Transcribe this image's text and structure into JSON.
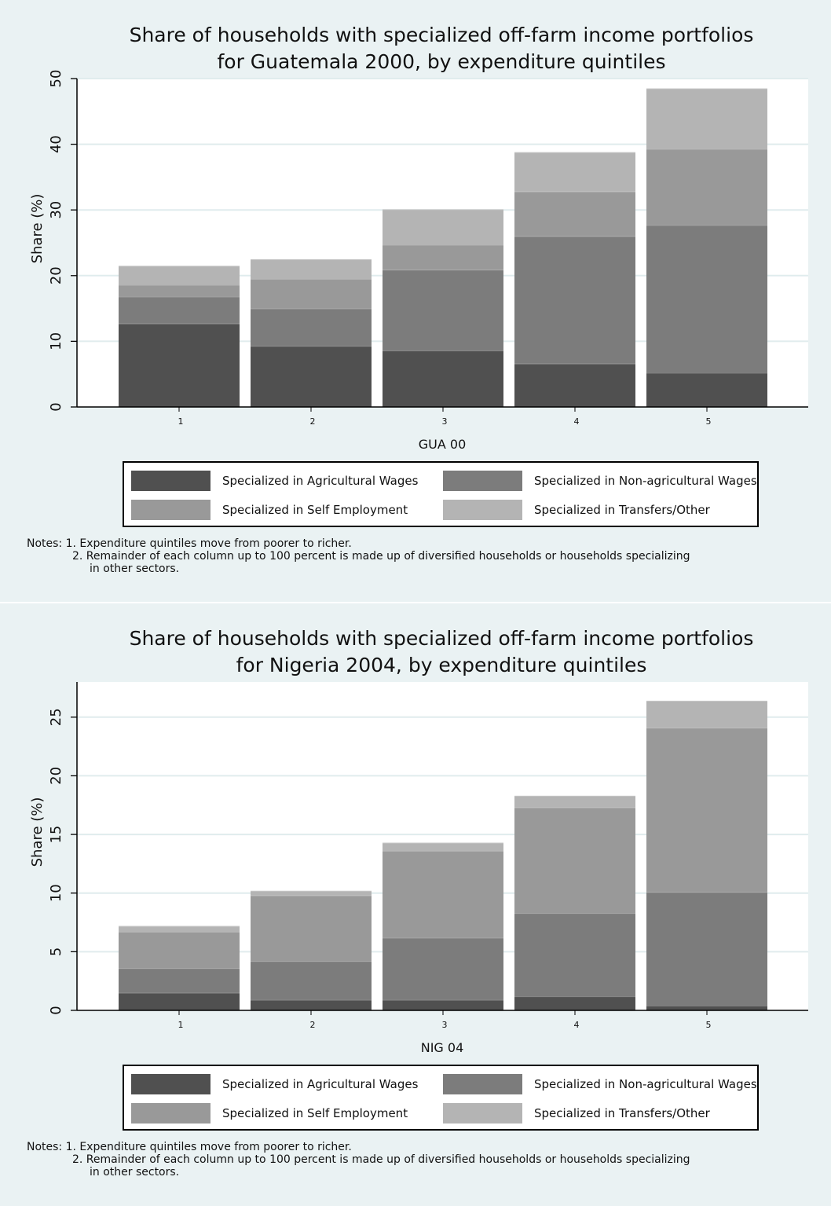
{
  "colors": {
    "agri_wages": "#505050",
    "nonagri_wages": "#7c7c7c",
    "self_employment": "#999999",
    "transfers_other": "#b4b4b4",
    "panel_bg": "#eaf2f3",
    "grid": "#e0eced"
  },
  "charts": [
    {
      "title_line1": "Share of households with specialized off-farm income portfolios",
      "title_line2": "for Guatemala 2000, by expenditure quintiles",
      "xname": "GUA 00",
      "notes": {
        "line1": "Notes: 1. Expenditure quintiles move from poorer to richer.",
        "line2": "2. Remainder of each column up to 100 percent is made up of diversified households or households specializing",
        "line3": "in other sectors."
      }
    },
    {
      "title_line1": "Share of households with specialized off-farm income portfolios",
      "title_line2": "for Nigeria 2004, by expenditure quintiles",
      "xname": "NIG 04",
      "notes": {
        "line1": "Notes: 1. Expenditure quintiles move from poorer to richer.",
        "line2": "2. Remainder of each column up to 100 percent is made up of diversified households or households specializing",
        "line3": "in other sectors."
      }
    }
  ],
  "legend": {
    "agri_wages": "Specialized in Agricultural Wages",
    "nonagri_wages": "Specialized in Non-agricultural Wages",
    "self_employment": "Specialized in Self Employment",
    "transfers_other": "Specialized in Transfers/Other"
  },
  "chart_data": [
    {
      "type": "bar",
      "stacked": true,
      "title": "Share of households with specialized off-farm income portfolios for Guatemala 2000, by expenditure quintiles",
      "xlabel": "GUA 00",
      "ylabel": "Share (%)",
      "categories": [
        "1",
        "2",
        "3",
        "4",
        "5"
      ],
      "ylim": [
        0,
        50
      ],
      "yticks": [
        0,
        10,
        20,
        30,
        40,
        50
      ],
      "grid": true,
      "legend_position": "bottom",
      "series": [
        {
          "name": "Specialized in Agricultural Wages",
          "values": [
            12.7,
            9.3,
            8.6,
            6.6,
            5.2
          ]
        },
        {
          "name": "Specialized in Non-agricultural Wages",
          "values": [
            4.1,
            5.7,
            12.3,
            19.4,
            22.5
          ]
        },
        {
          "name": "Specialized in Self Employment",
          "values": [
            1.8,
            4.5,
            3.8,
            6.8,
            11.6
          ]
        },
        {
          "name": "Specialized in Transfers/Other",
          "values": [
            2.9,
            3.0,
            5.4,
            6.0,
            9.2
          ]
        }
      ]
    },
    {
      "type": "bar",
      "stacked": true,
      "title": "Share of households with specialized off-farm income portfolios for Nigeria 2004, by expenditure quintiles",
      "xlabel": "NIG 04",
      "ylabel": "Share (%)",
      "categories": [
        "1",
        "2",
        "3",
        "4",
        "5"
      ],
      "ylim": [
        0,
        28
      ],
      "yticks": [
        0,
        5,
        10,
        15,
        20,
        25
      ],
      "grid": true,
      "legend_position": "bottom",
      "series": [
        {
          "name": "Specialized in Agricultural Wages",
          "values": [
            1.5,
            0.9,
            0.9,
            1.2,
            0.4
          ]
        },
        {
          "name": "Specialized in Non-agricultural Wages",
          "values": [
            2.1,
            3.3,
            5.3,
            7.1,
            9.7
          ]
        },
        {
          "name": "Specialized in Self Employment",
          "values": [
            3.1,
            5.6,
            7.4,
            9.0,
            14.0
          ]
        },
        {
          "name": "Specialized in Transfers/Other",
          "values": [
            0.5,
            0.4,
            0.7,
            1.0,
            2.3
          ]
        }
      ]
    }
  ]
}
